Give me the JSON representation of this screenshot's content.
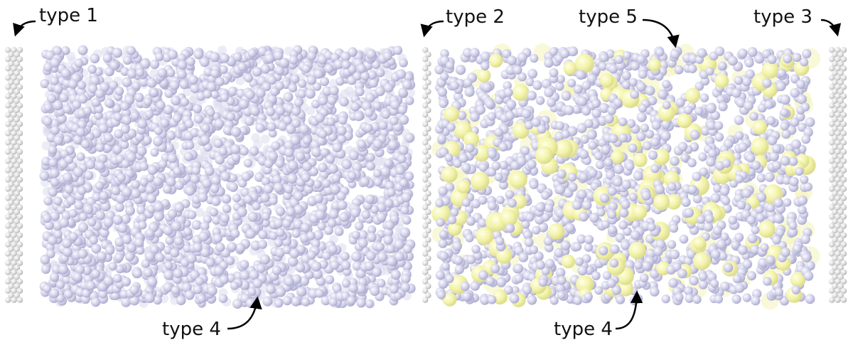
{
  "labels": {
    "type1": "type 1",
    "type2": "type 2",
    "type3": "type 3",
    "type4_left": "type 4",
    "type4_right": "type 4",
    "type5": "type 5"
  },
  "colors": {
    "wall_fill": "#dedede",
    "wall_stroke": "#b4b4b4",
    "solvent_particle": "#cfcee6",
    "solvent_particle_edge": "#aeacce",
    "large_particle": "#f2f2a8",
    "large_particle_edge": "#d8d88a",
    "arrow": "#000000",
    "text": "#111111"
  }
}
